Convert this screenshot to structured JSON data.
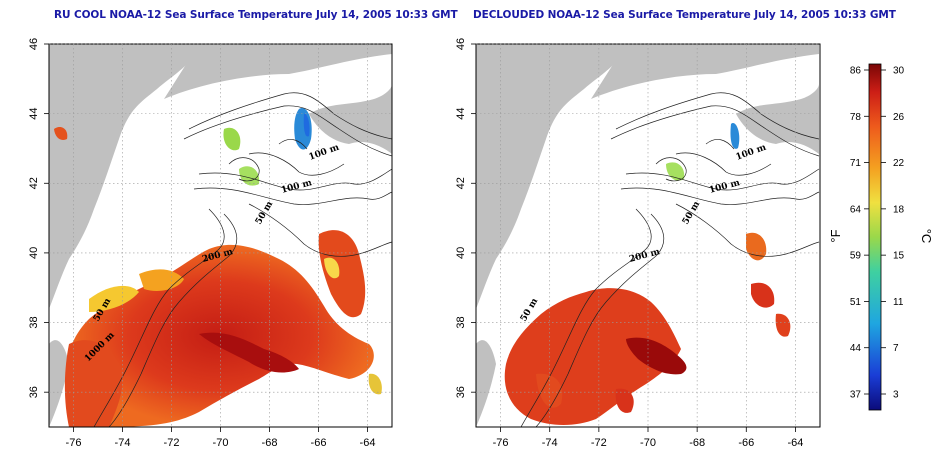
{
  "panels": [
    {
      "title": "RU COOL NOAA-12 Sea Surface Temperature July 14, 2005 10:33 GMT",
      "isobath_labels": [
        "100 m",
        "100 m",
        "50 m",
        "200 m",
        "50 m",
        "1000 m"
      ],
      "cloud_masked": false
    },
    {
      "title": "DECLOUDED NOAA-12 Sea Surface Temperature July 14, 2005 10:33 GMT",
      "isobath_labels": [
        "100 m",
        "100 m",
        "50 m",
        "200 m",
        "50 m"
      ],
      "cloud_masked": true
    }
  ],
  "axes": {
    "x_ticks": [
      "-76",
      "-74",
      "-72",
      "-70",
      "-68",
      "-66",
      "-64"
    ],
    "y_ticks": [
      "46",
      "44",
      "42",
      "40",
      "38",
      "36"
    ],
    "lon_range": [
      -77,
      -63
    ],
    "lat_range": [
      35,
      46
    ],
    "grid": true,
    "grid_style": "dotted"
  },
  "colorbar": {
    "f_ticks": [
      "86",
      "78",
      "71",
      "64",
      "59",
      "51",
      "44",
      "37"
    ],
    "c_ticks": [
      "30",
      "26",
      "22",
      "18",
      "15",
      "11",
      "7",
      "3"
    ],
    "f_unit": "°F",
    "c_unit": "°C"
  },
  "colors": {
    "title": "#1a1aa6",
    "land": "#c0c0c0",
    "cloud": "#ffffff",
    "warm": "#d62a1e",
    "hot": "#9a0a0a",
    "mid": "#f28a1c",
    "cool": "#e8e040",
    "cold": "#2b8ed6"
  }
}
